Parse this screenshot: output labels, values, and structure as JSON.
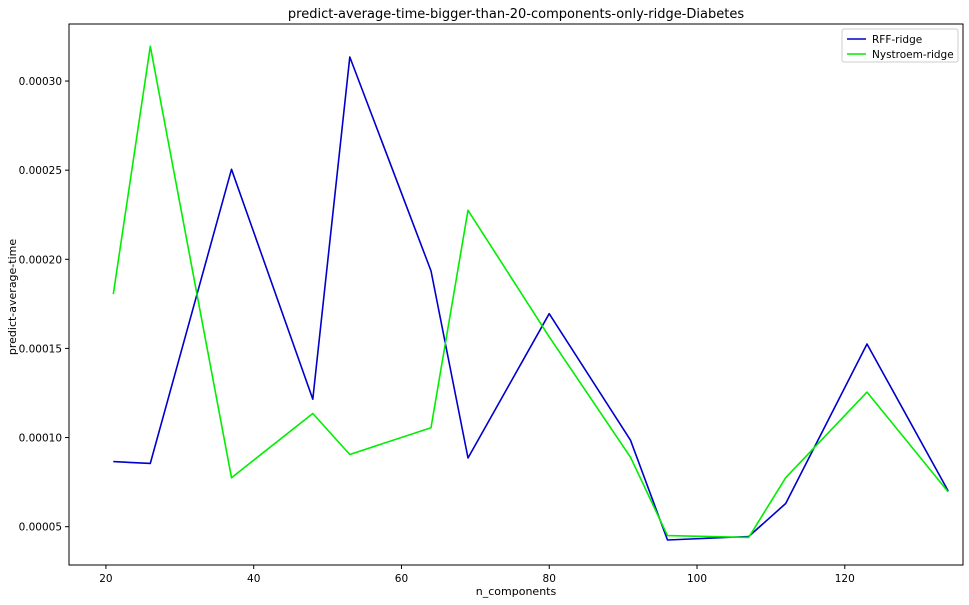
{
  "chart_data": {
    "type": "line",
    "title": "predict-average-time-bigger-than-20-components-only-ridge-Diabetes",
    "xlabel": "n_components",
    "ylabel": "predict-average-time",
    "xlim": [
      15,
      136
    ],
    "ylim": [
      2.85e-05,
      0.000332
    ],
    "xticks": [
      {
        "value": 20,
        "label": "20"
      },
      {
        "value": 40,
        "label": "40"
      },
      {
        "value": 60,
        "label": "60"
      },
      {
        "value": 80,
        "label": "80"
      },
      {
        "value": 100,
        "label": "100"
      },
      {
        "value": 120,
        "label": "120"
      }
    ],
    "yticks": [
      {
        "value": 5e-05,
        "label": "0.00005"
      },
      {
        "value": 0.0001,
        "label": "0.00010"
      },
      {
        "value": 0.00015,
        "label": "0.00015"
      },
      {
        "value": 0.0002,
        "label": "0.00020"
      },
      {
        "value": 0.00025,
        "label": "0.00025"
      },
      {
        "value": 0.0003,
        "label": "0.00030"
      }
    ],
    "grid": false,
    "legend_position": "top-right",
    "series": [
      {
        "name": "RFF-ridge",
        "color": "#0000cc",
        "points": [
          [
            21,
            8.65e-05
          ],
          [
            26,
            8.55e-05
          ],
          [
            37,
            0.0002505
          ],
          [
            48,
            0.0001215
          ],
          [
            53,
            0.0003135
          ],
          [
            64,
            0.0001935
          ],
          [
            69,
            8.85e-05
          ],
          [
            80,
            0.0001695
          ],
          [
            91,
            9.85e-05
          ],
          [
            96,
            4.25e-05
          ],
          [
            107,
            4.45e-05
          ],
          [
            112,
            6.3e-05
          ],
          [
            123,
            0.0001525
          ],
          [
            134,
            7e-05
          ]
        ]
      },
      {
        "name": "Nystroem-ridge",
        "color": "#00ee00",
        "points": [
          [
            21,
            0.0001805
          ],
          [
            26,
            0.0003195
          ],
          [
            37,
            7.75e-05
          ],
          [
            48,
            0.0001135
          ],
          [
            53,
            9.05e-05
          ],
          [
            64,
            0.0001055
          ],
          [
            69,
            0.0002275
          ],
          [
            80,
            0.0001565
          ],
          [
            91,
            8.9e-05
          ],
          [
            96,
            4.5e-05
          ],
          [
            107,
            4.4e-05
          ],
          [
            112,
            7.75e-05
          ],
          [
            123,
            0.0001255
          ],
          [
            134,
            6.95e-05
          ]
        ]
      }
    ]
  }
}
